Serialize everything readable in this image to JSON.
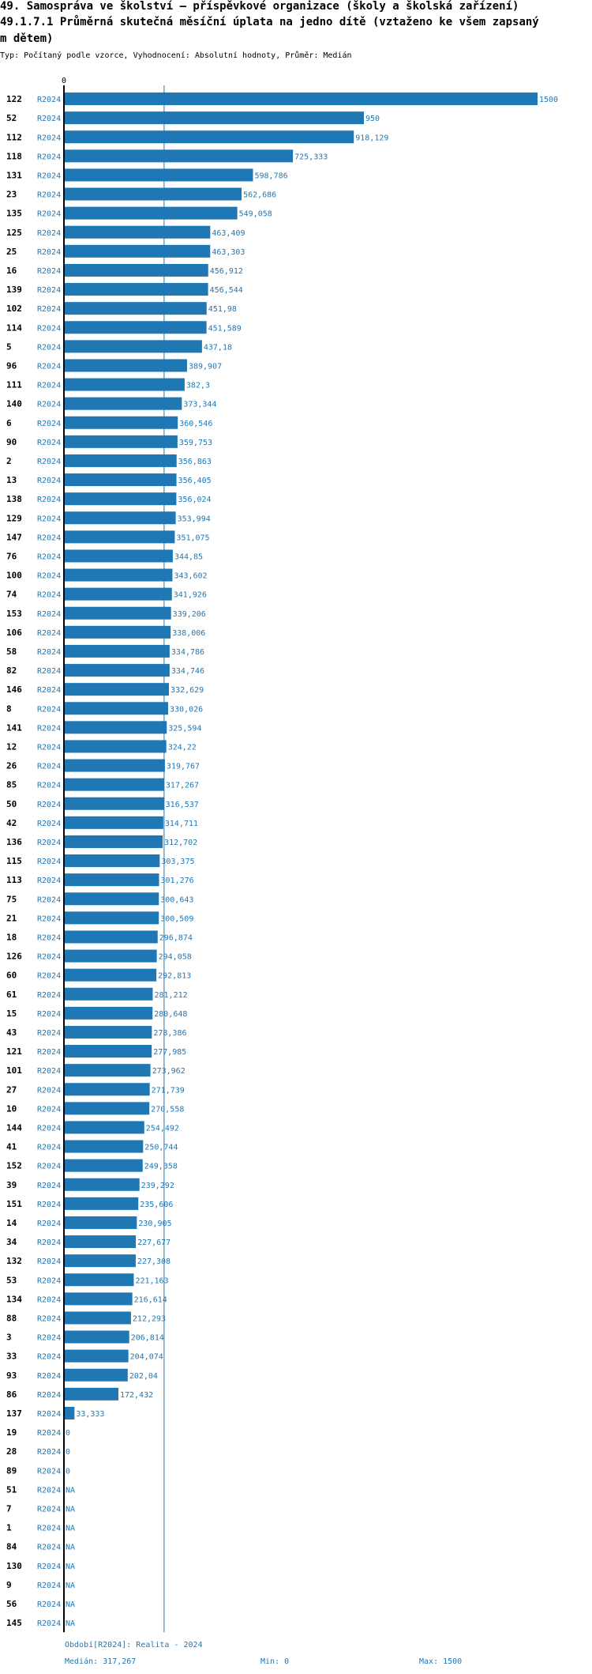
{
  "header": {
    "title_line1": "49. Samospráva ve školství – příspěvkové organizace (školy a školská zařízení)",
    "title_line2": "49.1.7.1 Průměrná skutečná měsíční úplata na jedno dítě (vztaženo ke všem zapsaný",
    "title_line3": "m dětem)",
    "subtitle": "Typ: Počítaný podle vzorce, Vyhodnocení: Absolutní hodnoty, Průměr: Medián"
  },
  "colors": {
    "bar": "#1f77b4",
    "label": "#1f77b4",
    "median_line": "#1f77b4",
    "axis": "#000000"
  },
  "chart_data": {
    "type": "bar",
    "orientation": "horizontal",
    "x_tick_labels": [
      "0"
    ],
    "xlim": [
      0,
      1500
    ],
    "series_label": "R2024",
    "median": 317.267,
    "rows": [
      {
        "id": "122",
        "label": "1500",
        "value": 1500
      },
      {
        "id": "52",
        "label": "950",
        "value": 950
      },
      {
        "id": "112",
        "label": "918,129",
        "value": 918.129
      },
      {
        "id": "118",
        "label": "725,333",
        "value": 725.333
      },
      {
        "id": "131",
        "label": "598,786",
        "value": 598.786
      },
      {
        "id": "23",
        "label": "562,686",
        "value": 562.686
      },
      {
        "id": "135",
        "label": "549,058",
        "value": 549.058
      },
      {
        "id": "125",
        "label": "463,409",
        "value": 463.409
      },
      {
        "id": "25",
        "label": "463,303",
        "value": 463.303
      },
      {
        "id": "16",
        "label": "456,912",
        "value": 456.912
      },
      {
        "id": "139",
        "label": "456,544",
        "value": 456.544
      },
      {
        "id": "102",
        "label": "451,98",
        "value": 451.98
      },
      {
        "id": "114",
        "label": "451,589",
        "value": 451.589
      },
      {
        "id": "5",
        "label": "437,18",
        "value": 437.18
      },
      {
        "id": "96",
        "label": "389,907",
        "value": 389.907
      },
      {
        "id": "111",
        "label": "382,3",
        "value": 382.3
      },
      {
        "id": "140",
        "label": "373,344",
        "value": 373.344
      },
      {
        "id": "6",
        "label": "360,546",
        "value": 360.546
      },
      {
        "id": "90",
        "label": "359,753",
        "value": 359.753
      },
      {
        "id": "2",
        "label": "356,863",
        "value": 356.863
      },
      {
        "id": "13",
        "label": "356,405",
        "value": 356.405
      },
      {
        "id": "138",
        "label": "356,024",
        "value": 356.024
      },
      {
        "id": "129",
        "label": "353,994",
        "value": 353.994
      },
      {
        "id": "147",
        "label": "351,075",
        "value": 351.075
      },
      {
        "id": "76",
        "label": "344,85",
        "value": 344.85
      },
      {
        "id": "100",
        "label": "343,602",
        "value": 343.602
      },
      {
        "id": "74",
        "label": "341,926",
        "value": 341.926
      },
      {
        "id": "153",
        "label": "339,206",
        "value": 339.206
      },
      {
        "id": "106",
        "label": "338,006",
        "value": 338.006
      },
      {
        "id": "58",
        "label": "334,786",
        "value": 334.786
      },
      {
        "id": "82",
        "label": "334,746",
        "value": 334.746
      },
      {
        "id": "146",
        "label": "332,629",
        "value": 332.629
      },
      {
        "id": "8",
        "label": "330,026",
        "value": 330.026
      },
      {
        "id": "141",
        "label": "325,594",
        "value": 325.594
      },
      {
        "id": "12",
        "label": "324,22",
        "value": 324.22
      },
      {
        "id": "26",
        "label": "319,767",
        "value": 319.767
      },
      {
        "id": "85",
        "label": "317,267",
        "value": 317.267
      },
      {
        "id": "50",
        "label": "316,537",
        "value": 316.537
      },
      {
        "id": "42",
        "label": "314,711",
        "value": 314.711
      },
      {
        "id": "136",
        "label": "312,702",
        "value": 312.702
      },
      {
        "id": "115",
        "label": "303,375",
        "value": 303.375
      },
      {
        "id": "113",
        "label": "301,276",
        "value": 301.276
      },
      {
        "id": "75",
        "label": "300,643",
        "value": 300.643
      },
      {
        "id": "21",
        "label": "300,509",
        "value": 300.509
      },
      {
        "id": "18",
        "label": "296,874",
        "value": 296.874
      },
      {
        "id": "126",
        "label": "294,058",
        "value": 294.058
      },
      {
        "id": "60",
        "label": "292,813",
        "value": 292.813
      },
      {
        "id": "61",
        "label": "281,212",
        "value": 281.212
      },
      {
        "id": "15",
        "label": "280,648",
        "value": 280.648
      },
      {
        "id": "43",
        "label": "278,386",
        "value": 278.386
      },
      {
        "id": "121",
        "label": "277,985",
        "value": 277.985
      },
      {
        "id": "101",
        "label": "273,962",
        "value": 273.962
      },
      {
        "id": "27",
        "label": "271,739",
        "value": 271.739
      },
      {
        "id": "10",
        "label": "270,558",
        "value": 270.558
      },
      {
        "id": "144",
        "label": "254,492",
        "value": 254.492
      },
      {
        "id": "41",
        "label": "250,744",
        "value": 250.744
      },
      {
        "id": "152",
        "label": "249,358",
        "value": 249.358
      },
      {
        "id": "39",
        "label": "239,292",
        "value": 239.292
      },
      {
        "id": "151",
        "label": "235,606",
        "value": 235.606
      },
      {
        "id": "14",
        "label": "230,905",
        "value": 230.905
      },
      {
        "id": "34",
        "label": "227,677",
        "value": 227.677
      },
      {
        "id": "132",
        "label": "227,308",
        "value": 227.308
      },
      {
        "id": "53",
        "label": "221,163",
        "value": 221.163
      },
      {
        "id": "134",
        "label": "216,614",
        "value": 216.614
      },
      {
        "id": "88",
        "label": "212,293",
        "value": 212.293
      },
      {
        "id": "3",
        "label": "206,814",
        "value": 206.814
      },
      {
        "id": "33",
        "label": "204,074",
        "value": 204.074
      },
      {
        "id": "93",
        "label": "202,04",
        "value": 202.04
      },
      {
        "id": "86",
        "label": "172,432",
        "value": 172.432
      },
      {
        "id": "137",
        "label": "33,333",
        "value": 33.333
      },
      {
        "id": "19",
        "label": "0",
        "value": 0
      },
      {
        "id": "28",
        "label": "0",
        "value": 0
      },
      {
        "id": "89",
        "label": "0",
        "value": 0
      },
      {
        "id": "51",
        "label": "NA",
        "value": null
      },
      {
        "id": "7",
        "label": "NA",
        "value": null
      },
      {
        "id": "1",
        "label": "NA",
        "value": null
      },
      {
        "id": "84",
        "label": "NA",
        "value": null
      },
      {
        "id": "130",
        "label": "NA",
        "value": null
      },
      {
        "id": "9",
        "label": "NA",
        "value": null
      },
      {
        "id": "56",
        "label": "NA",
        "value": null
      },
      {
        "id": "145",
        "label": "NA",
        "value": null
      }
    ]
  },
  "footer": {
    "period": "Období[R2024]: Realita - 2024",
    "median": "Medián: 317,267",
    "min": "Min: 0",
    "max": "Max: 1500"
  }
}
